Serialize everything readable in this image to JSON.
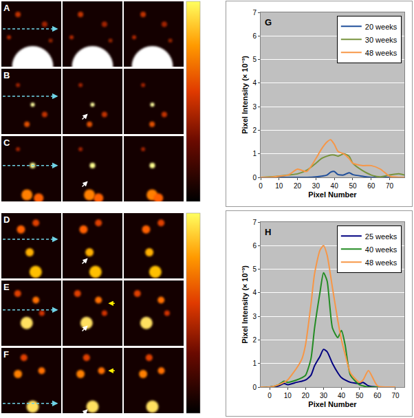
{
  "image_panels": {
    "labels": [
      "A",
      "B",
      "C",
      "D",
      "E",
      "F"
    ]
  },
  "chart_data": [
    {
      "type": "line",
      "title": "G",
      "x_label": "Pixel Number",
      "y_label": "Pixel Intensity (× 10⁻³)",
      "x": [
        0,
        5,
        10,
        15,
        20,
        25,
        30,
        33,
        36,
        38,
        40,
        42,
        45,
        48,
        50,
        55,
        60,
        65,
        70,
        75,
        78
      ],
      "series": [
        {
          "name": "20 weeks",
          "color": "#1f4e9a",
          "values": [
            0,
            0,
            0,
            0,
            0,
            0,
            0.02,
            0.05,
            0.1,
            0.22,
            0.25,
            0.12,
            0.1,
            0.2,
            0.12,
            0.05,
            0,
            0,
            0,
            0,
            0
          ]
        },
        {
          "name": "30 weeks",
          "color": "#77933c",
          "values": [
            0,
            0.02,
            0.05,
            0.1,
            0.15,
            0.3,
            0.6,
            0.8,
            0.9,
            0.95,
            0.95,
            0.9,
            1.0,
            0.9,
            0.6,
            0.3,
            0.1,
            0.02,
            0.1,
            0.15,
            0.1
          ]
        },
        {
          "name": "48 weeks",
          "color": "#f79646",
          "values": [
            0,
            0,
            0.05,
            0.1,
            0.35,
            0.25,
            0.8,
            1.2,
            1.5,
            1.6,
            1.4,
            1.1,
            1.0,
            0.8,
            0.6,
            0.5,
            0.5,
            0.35,
            0.05,
            0,
            0
          ]
        }
      ],
      "xlim": [
        0,
        78
      ],
      "xticks": [
        0,
        10,
        20,
        30,
        40,
        50,
        60,
        70
      ],
      "ylim": [
        0,
        7
      ],
      "yticks": [
        0,
        1,
        2,
        3,
        4,
        5,
        6,
        7
      ],
      "grid": true,
      "legend": "upper right"
    },
    {
      "type": "line",
      "title": "H",
      "x_label": "Pixel Number",
      "y_label": "Pixel Intensity (× 10⁻³)",
      "x": [
        -5,
        0,
        5,
        8,
        10,
        15,
        18,
        20,
        23,
        25,
        28,
        30,
        32,
        35,
        38,
        40,
        42,
        45,
        50,
        52,
        55,
        60,
        65,
        70
      ],
      "series": [
        {
          "name": "25 weeks",
          "color": "#000080",
          "values": [
            0,
            0,
            0.05,
            0.15,
            0.1,
            0.2,
            0.25,
            0.3,
            0.5,
            0.9,
            1.3,
            1.6,
            1.5,
            1.0,
            0.6,
            0.4,
            0.3,
            0.2,
            0.15,
            0.2,
            0.05,
            0,
            0,
            0
          ]
        },
        {
          "name": "40 weeks",
          "color": "#228b22",
          "values": [
            0,
            0,
            0.1,
            0.25,
            0.2,
            0.3,
            0.4,
            0.5,
            1.2,
            2.5,
            4.0,
            4.85,
            4.5,
            2.5,
            2.1,
            2.4,
            1.8,
            0.5,
            0.1,
            0.05,
            0,
            0,
            0,
            0
          ]
        },
        {
          "name": "48 weeks",
          "color": "#f79646",
          "values": [
            0,
            0,
            0.1,
            0.2,
            0.3,
            0.8,
            1.2,
            1.8,
            3.5,
            4.8,
            5.8,
            6.0,
            5.6,
            4.2,
            2.8,
            2.0,
            1.4,
            0.6,
            0.2,
            0.3,
            0.7,
            0.05,
            0,
            0
          ]
        }
      ],
      "xlim": [
        -5,
        75
      ],
      "xticks": [
        0,
        10,
        20,
        30,
        40,
        50,
        60,
        70
      ],
      "ylim": [
        0,
        7
      ],
      "yticks": [
        0,
        1,
        2,
        3,
        4,
        5,
        6,
        7
      ],
      "grid": true,
      "legend": "upper right"
    }
  ]
}
